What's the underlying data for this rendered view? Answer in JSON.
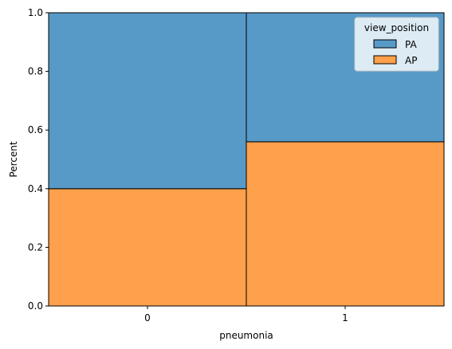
{
  "chart_data": {
    "type": "bar",
    "stacked": true,
    "normalized": true,
    "categories": [
      "0",
      "1"
    ],
    "series": [
      {
        "name": "PA",
        "values": [
          0.6,
          0.44
        ],
        "color": "#5799c7"
      },
      {
        "name": "AP",
        "values": [
          0.4,
          0.56
        ],
        "color": "#ffa04c"
      }
    ],
    "xlabel": "pneumonia",
    "ylabel": "Percent",
    "ylim": [
      0,
      1
    ],
    "yticks": [
      "0.0",
      "0.2",
      "0.4",
      "0.6",
      "0.8",
      "1.0"
    ],
    "legend": {
      "title": "view_position",
      "placement": "top-right"
    },
    "grid": false
  }
}
